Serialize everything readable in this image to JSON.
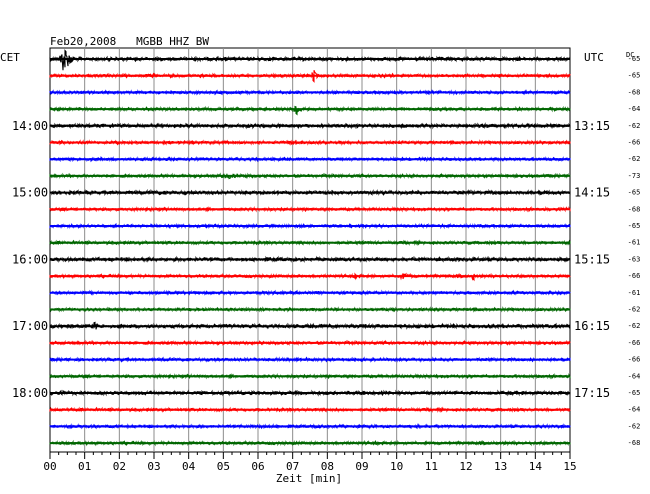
{
  "chart_data": {
    "type": "line",
    "title": "Feb20,2008   MGBB HHZ BW",
    "left_header": "CET",
    "right_header": "UTC",
    "dc_header": "DC",
    "xlabel": "Zeit [min]",
    "xlim": [
      0,
      15
    ],
    "x_ticks": [
      "00",
      "01",
      "02",
      "03",
      "04",
      "05",
      "06",
      "07",
      "08",
      "09",
      "10",
      "11",
      "12",
      "13",
      "14",
      "15"
    ],
    "trace_colors": [
      "#000000",
      "#ff0000",
      "#0000ff",
      "#006600"
    ],
    "left_time_labels": [
      {
        "trace": 4,
        "text": "14:00"
      },
      {
        "trace": 8,
        "text": "15:00"
      },
      {
        "trace": 12,
        "text": "16:00"
      },
      {
        "trace": 16,
        "text": "17:00"
      },
      {
        "trace": 20,
        "text": "18:00"
      }
    ],
    "right_time_labels": [
      {
        "trace": 4,
        "text": "13:15"
      },
      {
        "trace": 8,
        "text": "14:15"
      },
      {
        "trace": 12,
        "text": "15:15"
      },
      {
        "trace": 16,
        "text": "16:15"
      },
      {
        "trace": 20,
        "text": "17:15"
      }
    ],
    "dc_offsets": [
      "-65",
      "-65",
      "-68",
      "-64",
      "-62",
      "-66",
      "-62",
      "-73",
      "-65",
      "-68",
      "-65",
      "-61",
      "-63",
      "-66",
      "-61",
      "-62",
      "-62",
      "-66",
      "-66",
      "-64",
      "-65",
      "-64",
      "-62",
      "-68"
    ],
    "events": [
      {
        "trace": 0,
        "x_min": 0.4,
        "amplitude": 16,
        "width_min": 0.25
      },
      {
        "trace": 1,
        "x_min": 7.6,
        "amplitude": 8,
        "width_min": 0.12
      },
      {
        "trace": 3,
        "x_min": 7.1,
        "amplitude": 9,
        "width_min": 0.15
      },
      {
        "trace": 5,
        "x_min": 7.0,
        "amplitude": 3,
        "width_min": 0.3
      },
      {
        "trace": 5,
        "x_min": 8.4,
        "amplitude": 3,
        "width_min": 0.2
      },
      {
        "trace": 7,
        "x_min": 5.2,
        "amplitude": 3,
        "width_min": 1.2
      },
      {
        "trace": 13,
        "x_min": 8.8,
        "amplitude": 3,
        "width_min": 0.15
      },
      {
        "trace": 13,
        "x_min": 10.2,
        "amplitude": 3,
        "width_min": 0.6
      },
      {
        "trace": 13,
        "x_min": 12.2,
        "amplitude": 5,
        "width_min": 0.12
      },
      {
        "trace": 16,
        "x_min": 1.3,
        "amplitude": 4,
        "width_min": 0.4
      }
    ]
  }
}
